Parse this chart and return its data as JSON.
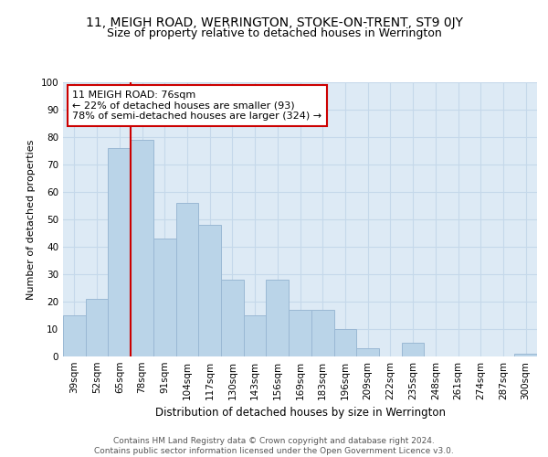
{
  "title1": "11, MEIGH ROAD, WERRINGTON, STOKE-ON-TRENT, ST9 0JY",
  "title2": "Size of property relative to detached houses in Werrington",
  "xlabel": "Distribution of detached houses by size in Werrington",
  "ylabel": "Number of detached properties",
  "categories": [
    "39sqm",
    "52sqm",
    "65sqm",
    "78sqm",
    "91sqm",
    "104sqm",
    "117sqm",
    "130sqm",
    "143sqm",
    "156sqm",
    "169sqm",
    "183sqm",
    "196sqm",
    "209sqm",
    "222sqm",
    "235sqm",
    "248sqm",
    "261sqm",
    "274sqm",
    "287sqm",
    "300sqm"
  ],
  "values": [
    15,
    21,
    76,
    79,
    43,
    56,
    48,
    28,
    15,
    28,
    17,
    17,
    10,
    3,
    0,
    5,
    0,
    0,
    0,
    0,
    1
  ],
  "bar_color": "#bad4e8",
  "bar_edge_color": "#9ab8d4",
  "grid_color": "#c5d8ea",
  "background_color": "#ddeaf5",
  "vline_color": "#cc0000",
  "vline_position": 3,
  "annotation_text": "11 MEIGH ROAD: 76sqm\n← 22% of detached houses are smaller (93)\n78% of semi-detached houses are larger (324) →",
  "annotation_box_facecolor": "#ffffff",
  "annotation_box_edgecolor": "#cc0000",
  "ylim": [
    0,
    100
  ],
  "yticks": [
    0,
    10,
    20,
    30,
    40,
    50,
    60,
    70,
    80,
    90,
    100
  ],
  "footer_text": "Contains HM Land Registry data © Crown copyright and database right 2024.\nContains public sector information licensed under the Open Government Licence v3.0.",
  "title1_fontsize": 10,
  "title2_fontsize": 9,
  "xlabel_fontsize": 8.5,
  "ylabel_fontsize": 8,
  "tick_fontsize": 7.5,
  "annotation_fontsize": 8,
  "footer_fontsize": 6.5
}
